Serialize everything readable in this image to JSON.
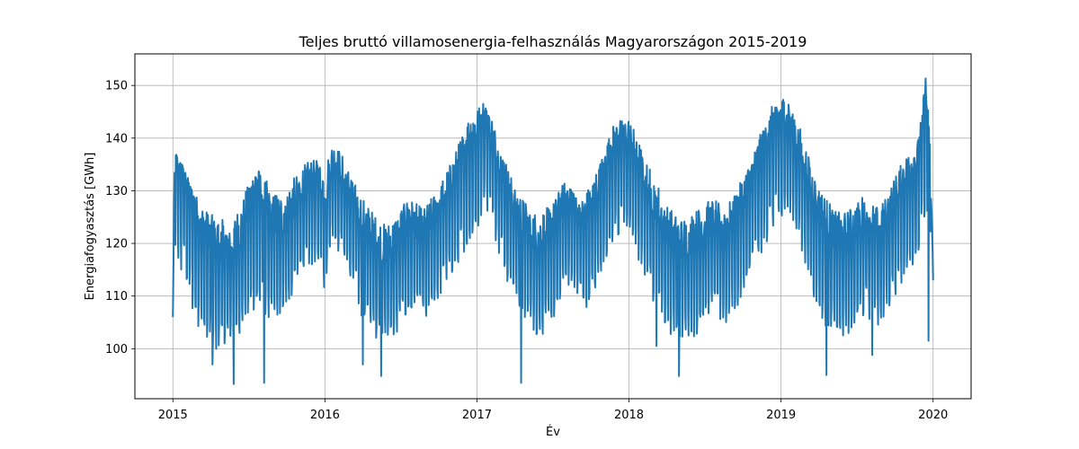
{
  "chart_data": {
    "type": "line",
    "title": "Teljes bruttó villamosenergia-felhasználás Magyarországon 2015-2019",
    "xlabel": "Év",
    "ylabel": "Energiafogyasztás [GWh]",
    "xlim": [
      2014.75,
      2020.25
    ],
    "ylim": [
      90.5,
      156
    ],
    "grid": true,
    "line_color": "#1f77b4",
    "xticks": [
      {
        "value": 2015,
        "label": "2015"
      },
      {
        "value": 2016,
        "label": "2016"
      },
      {
        "value": 2017,
        "label": "2017"
      },
      {
        "value": 2018,
        "label": "2018"
      },
      {
        "value": 2019,
        "label": "2019"
      },
      {
        "value": 2020,
        "label": "2020"
      }
    ],
    "yticks": [
      {
        "value": 100,
        "label": "100"
      },
      {
        "value": 110,
        "label": "110"
      },
      {
        "value": 120,
        "label": "120"
      },
      {
        "value": 130,
        "label": "130"
      },
      {
        "value": 140,
        "label": "140"
      },
      {
        "value": 150,
        "label": "150"
      }
    ],
    "series": [
      {
        "name": "",
        "x": [
          2015.0,
          2015.01,
          2015.02,
          2015.04,
          2015.06,
          2015.08,
          2015.12,
          2015.16,
          2015.2,
          2015.25,
          2015.3,
          2015.35,
          2015.4,
          2015.45,
          2015.5,
          2015.55,
          2015.6,
          2015.65,
          2015.7,
          2015.75,
          2015.8,
          2015.85,
          2015.9,
          2015.95,
          2016.0,
          2016.05,
          2016.1,
          2016.15,
          2016.2,
          2016.25,
          2016.3,
          2016.35,
          2016.4,
          2016.45,
          2016.5,
          2016.55,
          2016.6,
          2016.65,
          2016.7,
          2016.75,
          2016.8,
          2016.85,
          2016.9,
          2016.95,
          2017.0,
          2017.04,
          2017.08,
          2017.12,
          2017.16,
          2017.2,
          2017.25,
          2017.3,
          2017.35,
          2017.4,
          2017.45,
          2017.5,
          2017.55,
          2017.6,
          2017.65,
          2017.7,
          2017.75,
          2017.8,
          2017.85,
          2017.9,
          2017.95,
          2018.0,
          2018.05,
          2018.1,
          2018.15,
          2018.2,
          2018.25,
          2018.3,
          2018.35,
          2018.4,
          2018.45,
          2018.5,
          2018.55,
          2018.6,
          2018.65,
          2018.7,
          2018.75,
          2018.8,
          2018.85,
          2018.9,
          2018.95,
          2019.0,
          2019.04,
          2019.08,
          2019.12,
          2019.16,
          2019.2,
          2019.25,
          2019.3,
          2019.35,
          2019.4,
          2019.45,
          2019.5,
          2019.55,
          2019.6,
          2019.65,
          2019.7,
          2019.75,
          2019.8,
          2019.85,
          2019.9,
          2019.93,
          2019.95,
          2019.98,
          2020.0
        ],
        "y": [
          106,
          131,
          137,
          133,
          135,
          132,
          128,
          124,
          120,
          118,
          116,
          114,
          115,
          118,
          124,
          129,
          124,
          121,
          119,
          121,
          124,
          127,
          130,
          131,
          125,
          134,
          131,
          127,
          124,
          120,
          118,
          116,
          115,
          116,
          119,
          122,
          120,
          118,
          121,
          124,
          127,
          130,
          133,
          136,
          138,
          144,
          141,
          136,
          132,
          128,
          124,
          121,
          119,
          117,
          118,
          120,
          124,
          127,
          124,
          121,
          124,
          128,
          133,
          137,
          138,
          138,
          133,
          129,
          125,
          122,
          119,
          117,
          116,
          117,
          118,
          120,
          121,
          119,
          120,
          122,
          125,
          129,
          133,
          136,
          140,
          140,
          142,
          138,
          135,
          131,
          127,
          123,
          120,
          118,
          117,
          118,
          120,
          122,
          120,
          119,
          122,
          126,
          129,
          131,
          133,
          140,
          145,
          132,
          113
        ]
      }
    ],
    "line_envelope": {
      "lower": [
        106,
        117,
        115,
        112,
        110,
        108,
        104,
        100,
        98,
        97,
        96,
        97,
        99,
        100,
        102,
        103,
        101,
        100,
        103,
        106,
        108,
        111,
        113,
        114,
        108,
        118,
        115,
        111,
        107,
        103,
        101,
        99,
        98,
        99,
        101,
        104,
        103,
        102,
        104,
        107,
        110,
        112,
        115,
        117,
        118,
        124,
        122,
        118,
        114,
        110,
        106,
        103,
        101,
        99,
        100,
        102,
        106,
        108,
        106,
        104,
        106,
        110,
        114,
        117,
        117,
        117,
        114,
        110,
        106,
        103,
        101,
        99,
        98,
        99,
        100,
        102,
        103,
        101,
        102,
        104,
        107,
        111,
        114,
        117,
        120,
        120,
        122,
        119,
        116,
        112,
        108,
        104,
        101,
        100,
        99,
        100,
        102,
        104,
        102,
        101,
        104,
        107,
        110,
        112,
        114,
        118,
        124,
        118,
        113
      ],
      "upper": [
        106,
        134,
        137,
        136,
        135,
        134,
        131,
        129,
        127,
        126,
        125,
        125,
        126,
        128,
        132,
        135,
        133,
        131,
        130,
        131,
        133,
        135,
        136,
        136,
        135,
        139,
        138,
        135,
        132,
        129,
        127,
        125,
        124,
        125,
        127,
        129,
        128,
        127,
        129,
        131,
        134,
        137,
        141,
        145,
        146,
        147,
        146,
        142,
        139,
        135,
        131,
        129,
        127,
        126,
        127,
        128,
        131,
        133,
        131,
        129,
        132,
        135,
        139,
        143,
        144,
        144,
        141,
        137,
        134,
        131,
        128,
        126,
        125,
        126,
        127,
        128,
        129,
        128,
        128,
        130,
        133,
        136,
        140,
        144,
        147,
        148,
        149,
        146,
        143,
        139,
        135,
        131,
        129,
        127,
        126,
        127,
        128,
        130,
        128,
        127,
        130,
        133,
        136,
        138,
        140,
        146,
        153,
        141,
        117
      ]
    },
    "extreme_lows": [
      {
        "x": 2015.26,
        "y": 97.0
      },
      {
        "x": 2015.4,
        "y": 93.3
      },
      {
        "x": 2015.6,
        "y": 93.5
      },
      {
        "x": 2016.25,
        "y": 97.0
      },
      {
        "x": 2016.37,
        "y": 94.8
      },
      {
        "x": 2017.29,
        "y": 93.5
      },
      {
        "x": 2018.18,
        "y": 100.5
      },
      {
        "x": 2018.33,
        "y": 94.8
      },
      {
        "x": 2019.3,
        "y": 95.0
      },
      {
        "x": 2019.6,
        "y": 98.8
      },
      {
        "x": 2019.97,
        "y": 101.5
      }
    ]
  }
}
